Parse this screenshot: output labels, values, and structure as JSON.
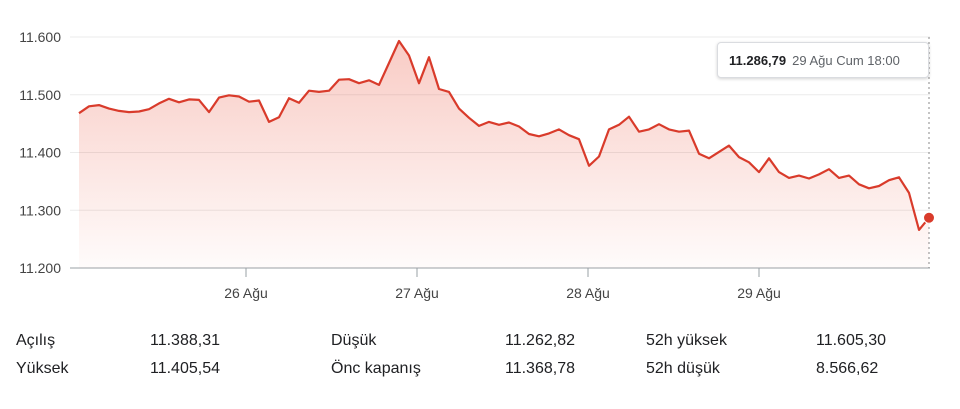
{
  "chart_data": {
    "type": "area",
    "y_ticks": [
      "11.600",
      "11.500",
      "11.400",
      "11.300",
      "11.200"
    ],
    "y_tick_values": [
      11600,
      11500,
      11400,
      11300,
      11200
    ],
    "ylim": [
      11200,
      11600
    ],
    "x_labels": [
      "26 Ağu",
      "27 Ağu",
      "28 Ağu",
      "29 Ağu"
    ],
    "series": [
      {
        "values": [
          11468,
          11480,
          11482,
          11476,
          11472,
          11470,
          11471,
          11475,
          11485,
          11493,
          11487,
          11492,
          11491,
          11470,
          11495,
          11499,
          11497,
          11488,
          11490,
          11453,
          11461,
          11494,
          11486,
          11507,
          11505,
          11507,
          11526,
          11527,
          11520,
          11525,
          11517,
          11555,
          11593,
          11568,
          11520,
          11565,
          11510,
          11505,
          11476,
          11460,
          11446,
          11453,
          11448,
          11452,
          11445,
          11432,
          11428,
          11433,
          11440,
          11430,
          11423,
          11377,
          11393,
          11440,
          11448,
          11462,
          11436,
          11440,
          11449,
          11440,
          11436,
          11438,
          11398,
          11390,
          11401,
          11412,
          11392,
          11383,
          11366,
          11390,
          11366,
          11356,
          11360,
          11355,
          11362,
          11371,
          11356,
          11360,
          11345,
          11338,
          11342,
          11352,
          11357,
          11330,
          11266,
          11287
        ]
      }
    ],
    "grid": true,
    "color": "#d93b2b"
  },
  "tooltip": {
    "value": "11.286,79",
    "time": "29 Ağu Cum 18:00"
  },
  "stats": {
    "open_label": "Açılış",
    "open_value": "11.388,31",
    "high_label": "Yüksek",
    "high_value": "11.405,54",
    "low_label": "Düşük",
    "low_value": "11.262,82",
    "prev_close_label": "Önc kapanış",
    "prev_close_value": "11.368,78",
    "high52_label": "52h yüksek",
    "high52_value": "11.605,30",
    "low52_label": "52h düşük",
    "low52_value": "8.566,62"
  }
}
